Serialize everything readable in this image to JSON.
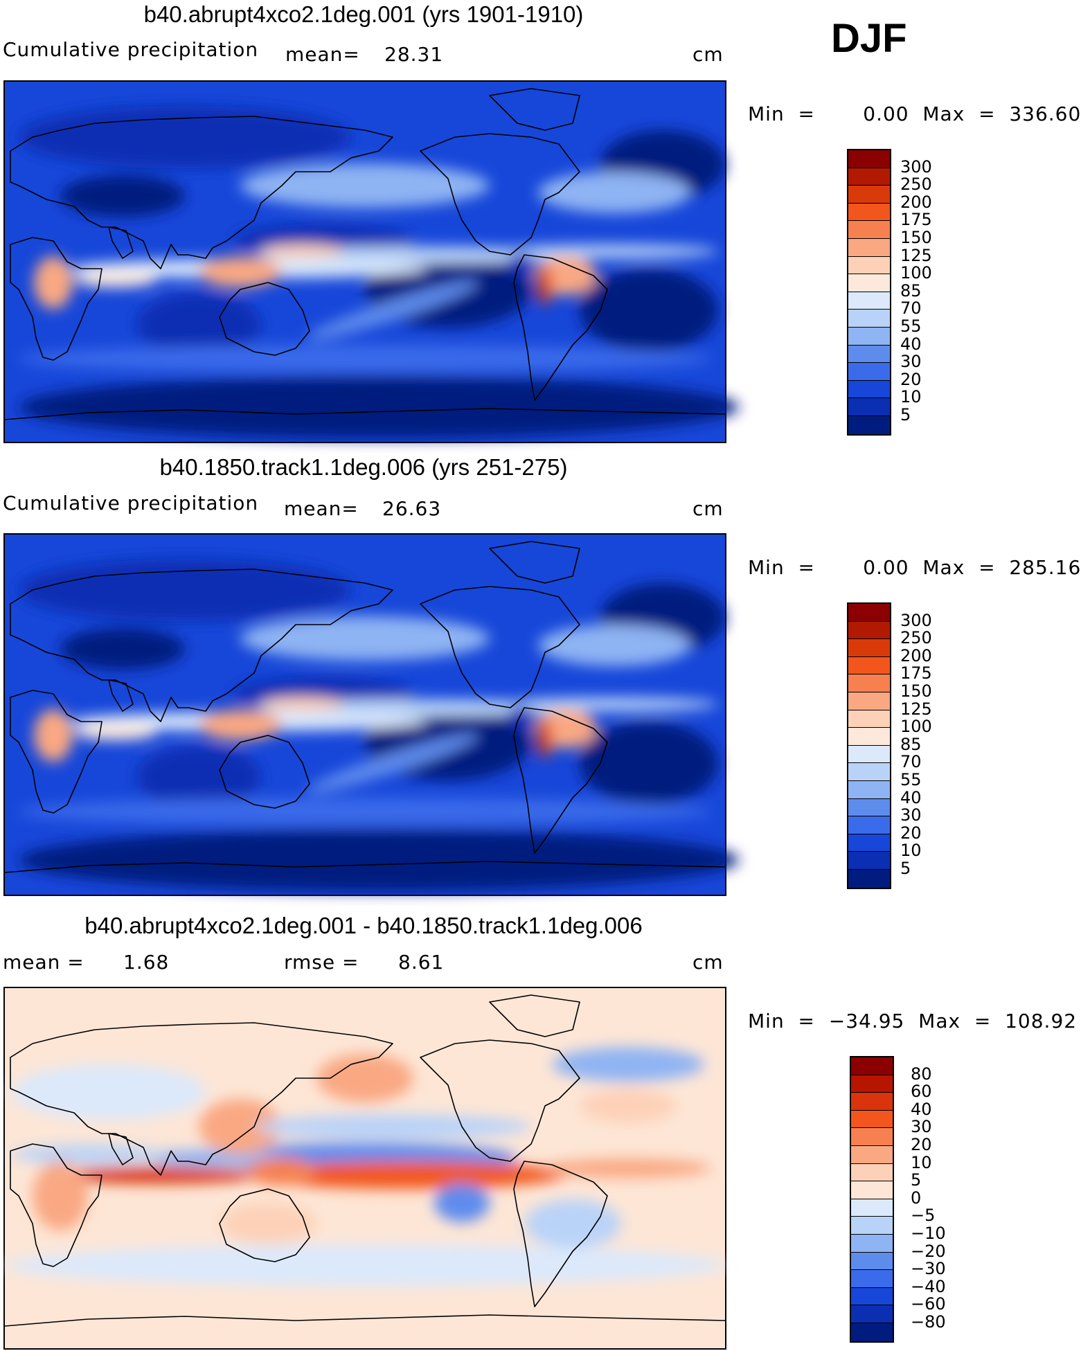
{
  "season": "DJF",
  "panels": [
    {
      "title": "b40.abrupt4xco2.1deg.001 (yrs 1901-1910)",
      "left_label": "Cumulative  precipitation",
      "mid_label": "mean=",
      "mid_value": "28.31",
      "unit": "cm",
      "minmax": "Min  =       0.00  Max  =  336.60",
      "colorbar": {
        "labels": [
          "300",
          "250",
          "200",
          "175",
          "150",
          "125",
          "100",
          "85",
          "70",
          "55",
          "40",
          "30",
          "20",
          "10",
          "5"
        ],
        "colors": [
          "#8b0000",
          "#b11a00",
          "#d93a0a",
          "#f2561c",
          "#f6804f",
          "#f9a882",
          "#fdd1b8",
          "#fde9dc",
          "#dbe9fb",
          "#b9d3f8",
          "#8fb4f3",
          "#5e8ced",
          "#3a6bea",
          "#1747d9",
          "#0a2fb3",
          "#001c7f"
        ]
      },
      "field": "abs"
    },
    {
      "title": "b40.1850.track1.1deg.006 (yrs 251-275)",
      "left_label": "Cumulative  precipitation",
      "mid_label": "mean=",
      "mid_value": "26.63",
      "unit": "cm",
      "minmax": "Min  =       0.00  Max  =  285.16",
      "colorbar": {
        "labels": [
          "300",
          "250",
          "200",
          "175",
          "150",
          "125",
          "100",
          "85",
          "70",
          "55",
          "40",
          "30",
          "20",
          "10",
          "5"
        ],
        "colors": [
          "#8b0000",
          "#b11a00",
          "#d93a0a",
          "#f2561c",
          "#f6804f",
          "#f9a882",
          "#fdd1b8",
          "#fde9dc",
          "#dbe9fb",
          "#b9d3f8",
          "#8fb4f3",
          "#5e8ced",
          "#3a6bea",
          "#1747d9",
          "#0a2fb3",
          "#001c7f"
        ]
      },
      "field": "abs"
    },
    {
      "title": "b40.abrupt4xco2.1deg.001 - b40.1850.track1.1deg.006",
      "left_label": "mean  =",
      "left_value": "1.68",
      "mid_label": "rmse  =",
      "mid_value": "8.61",
      "unit": "cm",
      "minmax": "Min  =  −34.95  Max  =  108.92",
      "colorbar": {
        "labels": [
          "80",
          "60",
          "40",
          "30",
          "20",
          "10",
          "5",
          "0",
          "−5",
          "−10",
          "−20",
          "−30",
          "−40",
          "−60",
          "−80"
        ],
        "colors": [
          "#8b0000",
          "#b81500",
          "#d9340c",
          "#f2561c",
          "#f6804f",
          "#f9a882",
          "#fdd1b8",
          "#fde6d6",
          "#dbe9fb",
          "#b9d3f8",
          "#8fb4f3",
          "#5e8ced",
          "#3a6bea",
          "#1747d9",
          "#0a2fb3",
          "#001c7f"
        ]
      },
      "field": "diff"
    }
  ]
}
